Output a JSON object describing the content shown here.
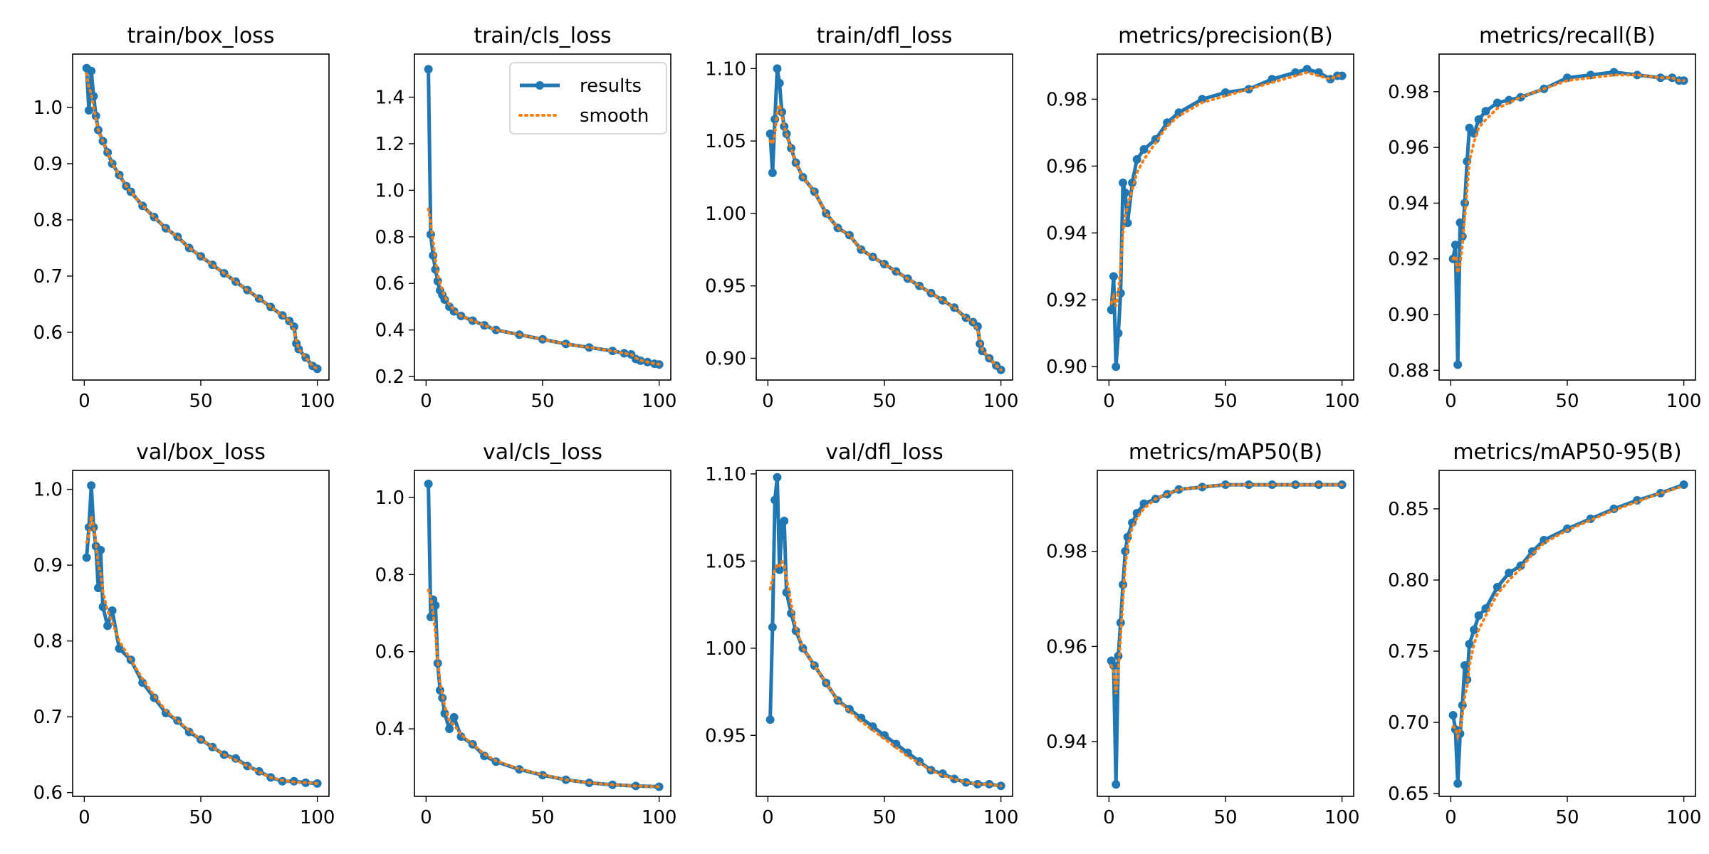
{
  "colors": {
    "results": "#1f77b4",
    "smooth": "#ff7f0e"
  },
  "legend": {
    "results_label": "results",
    "smooth_label": "smooth",
    "placement": "upper right of train/cls_loss panel"
  },
  "chart_data": [
    {
      "type": "line",
      "title": "train/box_loss",
      "xlim": [
        -5,
        105
      ],
      "ylim": [
        0.515,
        1.095
      ],
      "xticks": [
        0,
        50,
        100
      ],
      "yticks": [
        0.6,
        0.7,
        0.8,
        0.9,
        1.0
      ],
      "ytick_labels": [
        "0.6",
        "0.7",
        "0.8",
        "0.9",
        "1.0"
      ],
      "x": [
        1,
        2,
        3,
        4,
        5,
        6,
        8,
        10,
        12,
        15,
        18,
        20,
        25,
        30,
        35,
        40,
        45,
        50,
        55,
        60,
        65,
        70,
        75,
        80,
        85,
        88,
        90,
        91,
        92,
        95,
        98,
        100
      ],
      "series": [
        {
          "name": "results",
          "values": [
            1.07,
            0.995,
            1.065,
            1.02,
            0.985,
            0.96,
            0.94,
            0.92,
            0.9,
            0.88,
            0.86,
            0.85,
            0.825,
            0.805,
            0.785,
            0.77,
            0.75,
            0.735,
            0.72,
            0.705,
            0.69,
            0.675,
            0.66,
            0.645,
            0.63,
            0.62,
            0.61,
            0.58,
            0.57,
            0.555,
            0.54,
            0.535
          ]
        },
        {
          "name": "smooth",
          "values": [
            1.06,
            1.035,
            1.025,
            1.0,
            0.98,
            0.96,
            0.94,
            0.92,
            0.9,
            0.88,
            0.86,
            0.85,
            0.825,
            0.805,
            0.785,
            0.77,
            0.75,
            0.735,
            0.72,
            0.705,
            0.69,
            0.675,
            0.66,
            0.645,
            0.63,
            0.62,
            0.605,
            0.585,
            0.57,
            0.555,
            0.54,
            0.535
          ]
        }
      ]
    },
    {
      "type": "line",
      "title": "train/cls_loss",
      "xlim": [
        -5,
        105
      ],
      "ylim": [
        0.185,
        1.585
      ],
      "xticks": [
        0,
        50,
        100
      ],
      "yticks": [
        0.2,
        0.4,
        0.6,
        0.8,
        1.0,
        1.2,
        1.4
      ],
      "ytick_labels": [
        "0.2",
        "0.4",
        "0.6",
        "0.8",
        "1.0",
        "1.2",
        "1.4"
      ],
      "x": [
        1,
        2,
        3,
        4,
        5,
        6,
        7,
        8,
        10,
        12,
        15,
        20,
        25,
        30,
        40,
        50,
        60,
        70,
        80,
        85,
        88,
        90,
        92,
        95,
        98,
        100
      ],
      "series": [
        {
          "name": "results",
          "values": [
            1.52,
            0.81,
            0.72,
            0.66,
            0.61,
            0.57,
            0.55,
            0.53,
            0.5,
            0.48,
            0.46,
            0.44,
            0.42,
            0.4,
            0.38,
            0.36,
            0.34,
            0.325,
            0.31,
            0.3,
            0.295,
            0.275,
            0.268,
            0.262,
            0.255,
            0.252
          ]
        },
        {
          "name": "smooth",
          "values": [
            0.92,
            0.86,
            0.78,
            0.7,
            0.64,
            0.6,
            0.57,
            0.545,
            0.51,
            0.485,
            0.46,
            0.44,
            0.42,
            0.4,
            0.38,
            0.36,
            0.34,
            0.325,
            0.31,
            0.3,
            0.295,
            0.28,
            0.27,
            0.262,
            0.256,
            0.253
          ]
        }
      ]
    },
    {
      "type": "line",
      "title": "train/dfl_loss",
      "xlim": [
        -5,
        105
      ],
      "ylim": [
        0.885,
        1.11
      ],
      "xticks": [
        0,
        50,
        100
      ],
      "yticks": [
        0.9,
        0.95,
        1.0,
        1.05,
        1.1
      ],
      "ytick_labels": [
        "0.90",
        "0.95",
        "1.00",
        "1.05",
        "1.10"
      ],
      "x": [
        1,
        2,
        3,
        4,
        5,
        6,
        7,
        8,
        10,
        12,
        15,
        20,
        25,
        30,
        35,
        40,
        45,
        50,
        55,
        60,
        65,
        70,
        75,
        80,
        85,
        88,
        90,
        91,
        92,
        95,
        98,
        100
      ],
      "series": [
        {
          "name": "results",
          "values": [
            1.055,
            1.028,
            1.065,
            1.1,
            1.09,
            1.07,
            1.06,
            1.055,
            1.045,
            1.035,
            1.025,
            1.015,
            1.0,
            0.99,
            0.985,
            0.975,
            0.97,
            0.965,
            0.96,
            0.955,
            0.95,
            0.945,
            0.94,
            0.935,
            0.928,
            0.925,
            0.922,
            0.91,
            0.905,
            0.9,
            0.895,
            0.892
          ]
        },
        {
          "name": "smooth",
          "values": [
            1.05,
            1.048,
            1.055,
            1.07,
            1.075,
            1.068,
            1.06,
            1.055,
            1.045,
            1.035,
            1.025,
            1.015,
            1.0,
            0.99,
            0.985,
            0.975,
            0.97,
            0.965,
            0.96,
            0.955,
            0.95,
            0.945,
            0.94,
            0.935,
            0.928,
            0.925,
            0.92,
            0.912,
            0.906,
            0.9,
            0.895,
            0.892
          ]
        }
      ]
    },
    {
      "type": "line",
      "title": "metrics/precision(B)",
      "xlim": [
        -5,
        105
      ],
      "ylim": [
        0.896,
        0.9935
      ],
      "xticks": [
        0,
        50,
        100
      ],
      "yticks": [
        0.9,
        0.92,
        0.94,
        0.96,
        0.98
      ],
      "ytick_labels": [
        "0.90",
        "0.92",
        "0.94",
        "0.96",
        "0.98"
      ],
      "x": [
        1,
        2,
        3,
        4,
        5,
        6,
        7,
        8,
        10,
        12,
        15,
        20,
        25,
        30,
        40,
        50,
        60,
        70,
        80,
        85,
        90,
        95,
        98,
        100
      ],
      "series": [
        {
          "name": "results",
          "values": [
            0.917,
            0.927,
            0.9,
            0.91,
            0.922,
            0.955,
            0.952,
            0.943,
            0.955,
            0.962,
            0.965,
            0.968,
            0.973,
            0.976,
            0.98,
            0.982,
            0.983,
            0.986,
            0.988,
            0.989,
            0.988,
            0.986,
            0.987,
            0.987
          ]
        },
        {
          "name": "smooth",
          "values": [
            0.919,
            0.921,
            0.918,
            0.922,
            0.93,
            0.94,
            0.945,
            0.948,
            0.953,
            0.958,
            0.962,
            0.967,
            0.972,
            0.975,
            0.979,
            0.981,
            0.983,
            0.985,
            0.987,
            0.988,
            0.987,
            0.986,
            0.987,
            0.987
          ]
        }
      ]
    },
    {
      "type": "line",
      "title": "metrics/recall(B)",
      "xlim": [
        -5,
        105
      ],
      "ylim": [
        0.8765,
        0.9935
      ],
      "xticks": [
        0,
        50,
        100
      ],
      "yticks": [
        0.88,
        0.9,
        0.92,
        0.94,
        0.96,
        0.98
      ],
      "ytick_labels": [
        "0.88",
        "0.90",
        "0.92",
        "0.94",
        "0.96",
        "0.98"
      ],
      "x": [
        1,
        2,
        3,
        4,
        5,
        6,
        7,
        8,
        10,
        12,
        15,
        20,
        25,
        30,
        40,
        50,
        60,
        70,
        80,
        90,
        95,
        98,
        100
      ],
      "series": [
        {
          "name": "results",
          "values": [
            0.92,
            0.925,
            0.882,
            0.933,
            0.928,
            0.94,
            0.955,
            0.967,
            0.965,
            0.97,
            0.973,
            0.976,
            0.977,
            0.978,
            0.981,
            0.985,
            0.986,
            0.987,
            0.986,
            0.985,
            0.985,
            0.984,
            0.984
          ]
        },
        {
          "name": "smooth",
          "values": [
            0.92,
            0.921,
            0.915,
            0.918,
            0.925,
            0.935,
            0.945,
            0.955,
            0.962,
            0.967,
            0.97,
            0.974,
            0.976,
            0.978,
            0.981,
            0.984,
            0.985,
            0.986,
            0.986,
            0.985,
            0.985,
            0.984,
            0.984
          ]
        }
      ]
    },
    {
      "type": "line",
      "title": "val/box_loss",
      "xlim": [
        -5,
        105
      ],
      "ylim": [
        0.595,
        1.025
      ],
      "xticks": [
        0,
        50,
        100
      ],
      "yticks": [
        0.6,
        0.7,
        0.8,
        0.9,
        1.0
      ],
      "ytick_labels": [
        "0.6",
        "0.7",
        "0.8",
        "0.9",
        "1.0"
      ],
      "x": [
        1,
        2,
        3,
        4,
        5,
        6,
        7,
        8,
        10,
        12,
        15,
        20,
        25,
        30,
        35,
        40,
        45,
        50,
        55,
        60,
        65,
        70,
        75,
        80,
        85,
        90,
        95,
        100
      ],
      "series": [
        {
          "name": "results",
          "values": [
            0.91,
            0.95,
            1.005,
            0.95,
            0.925,
            0.87,
            0.92,
            0.845,
            0.82,
            0.84,
            0.79,
            0.775,
            0.745,
            0.725,
            0.705,
            0.695,
            0.68,
            0.67,
            0.66,
            0.65,
            0.645,
            0.635,
            0.628,
            0.62,
            0.615,
            0.615,
            0.613,
            0.612
          ]
        },
        {
          "name": "smooth",
          "values": [
            0.93,
            0.94,
            0.965,
            0.95,
            0.93,
            0.9,
            0.89,
            0.865,
            0.84,
            0.825,
            0.8,
            0.775,
            0.75,
            0.728,
            0.708,
            0.695,
            0.682,
            0.67,
            0.66,
            0.65,
            0.643,
            0.635,
            0.627,
            0.62,
            0.616,
            0.614,
            0.613,
            0.612
          ]
        }
      ]
    },
    {
      "type": "line",
      "title": "val/cls_loss",
      "xlim": [
        -5,
        105
      ],
      "ylim": [
        0.225,
        1.07
      ],
      "xticks": [
        0,
        50,
        100
      ],
      "yticks": [
        0.4,
        0.6,
        0.8,
        1.0
      ],
      "ytick_labels": [
        "0.4",
        "0.6",
        "0.8",
        "1.0"
      ],
      "x": [
        1,
        2,
        3,
        4,
        5,
        6,
        7,
        8,
        10,
        12,
        15,
        20,
        25,
        30,
        40,
        50,
        60,
        70,
        80,
        90,
        100
      ],
      "series": [
        {
          "name": "results",
          "values": [
            1.035,
            0.69,
            0.735,
            0.72,
            0.57,
            0.5,
            0.48,
            0.44,
            0.4,
            0.43,
            0.38,
            0.36,
            0.33,
            0.315,
            0.295,
            0.28,
            0.268,
            0.26,
            0.255,
            0.252,
            0.25
          ]
        },
        {
          "name": "smooth",
          "values": [
            0.76,
            0.74,
            0.7,
            0.65,
            0.58,
            0.52,
            0.49,
            0.46,
            0.42,
            0.41,
            0.385,
            0.36,
            0.335,
            0.317,
            0.296,
            0.281,
            0.268,
            0.26,
            0.255,
            0.252,
            0.25
          ]
        }
      ]
    },
    {
      "type": "line",
      "title": "val/dfl_loss",
      "xlim": [
        -5,
        105
      ],
      "ylim": [
        0.915,
        1.102
      ],
      "xticks": [
        0,
        50,
        100
      ],
      "yticks": [
        0.95,
        1.0,
        1.05,
        1.1
      ],
      "ytick_labels": [
        "0.95",
        "1.00",
        "1.05",
        "1.10"
      ],
      "x": [
        1,
        2,
        3,
        4,
        5,
        6,
        7,
        8,
        10,
        12,
        15,
        20,
        25,
        30,
        35,
        40,
        45,
        50,
        55,
        60,
        65,
        70,
        75,
        80,
        85,
        90,
        95,
        100
      ],
      "series": [
        {
          "name": "results",
          "values": [
            0.959,
            1.012,
            1.085,
            1.098,
            1.045,
            1.07,
            1.073,
            1.032,
            1.02,
            1.01,
            1.0,
            0.99,
            0.98,
            0.97,
            0.965,
            0.96,
            0.955,
            0.95,
            0.945,
            0.94,
            0.935,
            0.93,
            0.928,
            0.925,
            0.923,
            0.922,
            0.922,
            0.921
          ]
        },
        {
          "name": "smooth",
          "values": [
            1.034,
            1.04,
            1.045,
            1.048,
            1.047,
            1.05,
            1.048,
            1.04,
            1.025,
            1.012,
            1.0,
            0.99,
            0.98,
            0.97,
            0.964,
            0.958,
            0.953,
            0.948,
            0.943,
            0.938,
            0.934,
            0.93,
            0.927,
            0.925,
            0.923,
            0.922,
            0.922,
            0.921
          ]
        }
      ]
    },
    {
      "type": "line",
      "title": "metrics/mAP50(B)",
      "xlim": [
        -5,
        105
      ],
      "ylim": [
        0.9285,
        0.997
      ],
      "xticks": [
        0,
        50,
        100
      ],
      "yticks": [
        0.94,
        0.96,
        0.98
      ],
      "ytick_labels": [
        "0.94",
        "0.96",
        "0.98"
      ],
      "x": [
        1,
        2,
        3,
        4,
        5,
        6,
        7,
        8,
        10,
        12,
        15,
        20,
        25,
        30,
        40,
        50,
        60,
        70,
        80,
        90,
        100
      ],
      "series": [
        {
          "name": "results",
          "values": [
            0.957,
            0.956,
            0.931,
            0.958,
            0.965,
            0.973,
            0.98,
            0.983,
            0.986,
            0.988,
            0.99,
            0.991,
            0.992,
            0.993,
            0.9935,
            0.994,
            0.994,
            0.994,
            0.994,
            0.994,
            0.994
          ]
        },
        {
          "name": "smooth",
          "values": [
            0.956,
            0.955,
            0.95,
            0.955,
            0.962,
            0.97,
            0.977,
            0.981,
            0.985,
            0.987,
            0.989,
            0.991,
            0.992,
            0.993,
            0.9935,
            0.994,
            0.994,
            0.994,
            0.994,
            0.994,
            0.994
          ]
        }
      ]
    },
    {
      "type": "line",
      "title": "metrics/mAP50-95(B)",
      "xlim": [
        -5,
        105
      ],
      "ylim": [
        0.648,
        0.877
      ],
      "xticks": [
        0,
        50,
        100
      ],
      "yticks": [
        0.65,
        0.7,
        0.75,
        0.8,
        0.85
      ],
      "ytick_labels": [
        "0.65",
        "0.70",
        "0.75",
        "0.80",
        "0.85"
      ],
      "x": [
        1,
        2,
        3,
        4,
        5,
        6,
        7,
        8,
        10,
        12,
        15,
        20,
        25,
        30,
        35,
        40,
        50,
        60,
        70,
        80,
        90,
        100
      ],
      "series": [
        {
          "name": "results",
          "values": [
            0.705,
            0.695,
            0.657,
            0.692,
            0.712,
            0.74,
            0.73,
            0.755,
            0.765,
            0.775,
            0.78,
            0.795,
            0.805,
            0.81,
            0.82,
            0.828,
            0.836,
            0.843,
            0.85,
            0.856,
            0.861,
            0.867
          ]
        },
        {
          "name": "smooth",
          "values": [
            0.697,
            0.696,
            0.69,
            0.695,
            0.705,
            0.718,
            0.725,
            0.74,
            0.755,
            0.765,
            0.775,
            0.79,
            0.8,
            0.808,
            0.818,
            0.826,
            0.835,
            0.842,
            0.849,
            0.855,
            0.861,
            0.866
          ]
        }
      ]
    }
  ]
}
